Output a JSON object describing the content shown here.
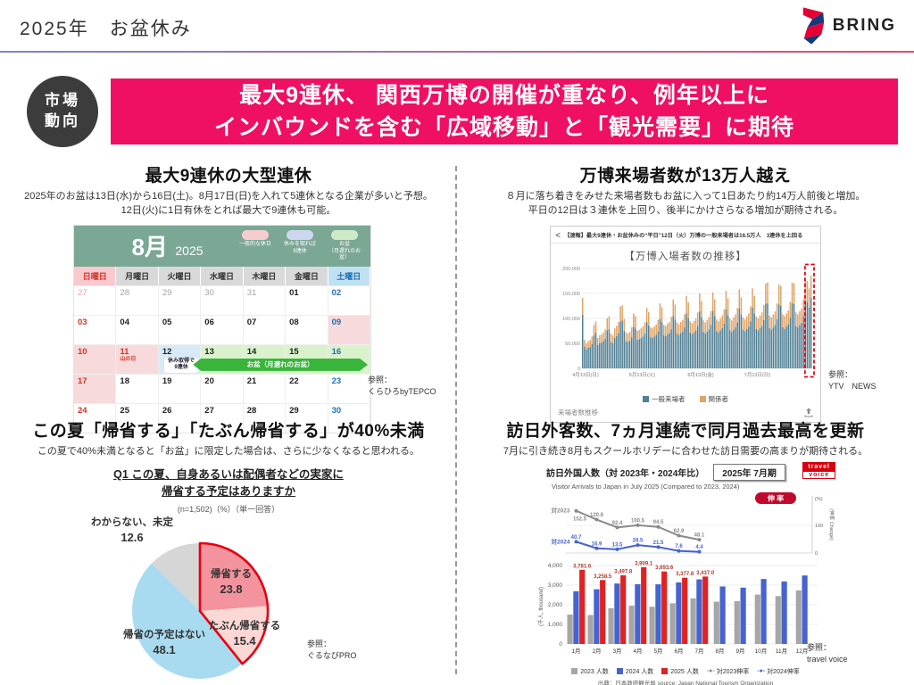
{
  "page": {
    "title": "2025年　お盆休み",
    "brand": "BRING"
  },
  "banner": {
    "tag_line1": "市場",
    "tag_line2": "動向",
    "headline_line1": "最大9連休、 関西万博の開催が重なり、例年以上に",
    "headline_line2": "インバウンドを含む「広域移動」と「観光需要」に期待",
    "accent_color": "#ef0f63"
  },
  "sections": {
    "calendar": {
      "title": "最大9連休の大型連休",
      "desc_line1": "2025年のお盆は13日(水)から16日(土)。8月17日(日)を入れて5連休となる企業が多いと予想。",
      "desc_line2": "12日(火)に1日有休をとれば最大で9連休も可能。",
      "month": "8月",
      "year": "2025",
      "header_color": "#7ba795",
      "legend": [
        {
          "line1": "一般的な休日",
          "line2": "",
          "color": "#f5cdd1"
        },
        {
          "line1": "休みを取れば",
          "line2": "9連休",
          "color": "#ccd7ee"
        },
        {
          "line1": "お盆",
          "line2": "（月遅れのお盆）",
          "color": "#cfe9c6"
        }
      ],
      "day_headers": [
        {
          "label": "日曜日",
          "cls": "sun"
        },
        {
          "label": "月曜日",
          "cls": "wd"
        },
        {
          "label": "火曜日",
          "cls": "wd"
        },
        {
          "label": "水曜日",
          "cls": "wd"
        },
        {
          "label": "木曜日",
          "cls": "wd"
        },
        {
          "label": "金曜日",
          "cls": "wd"
        },
        {
          "label": "土曜日",
          "cls": "sat"
        }
      ],
      "weeks": [
        [
          {
            "n": "27",
            "cls": "out-sun"
          },
          {
            "n": "28",
            "cls": "out"
          },
          {
            "n": "29",
            "cls": "out"
          },
          {
            "n": "30",
            "cls": "out"
          },
          {
            "n": "31",
            "cls": "out"
          },
          {
            "n": "01",
            "cls": "wd"
          },
          {
            "n": "02",
            "cls": "sat"
          }
        ],
        [
          {
            "n": "03",
            "cls": "sun"
          },
          {
            "n": "04",
            "cls": "wd"
          },
          {
            "n": "05",
            "cls": "wd"
          },
          {
            "n": "06",
            "cls": "wd"
          },
          {
            "n": "07",
            "cls": "wd"
          },
          {
            "n": "08",
            "cls": "wd"
          },
          {
            "n": "09",
            "cls": "sat bg-pink"
          }
        ],
        [
          {
            "n": "10",
            "cls": "sun bg-pink"
          },
          {
            "n": "11",
            "cls": "sun bg-pink",
            "note": "山の日"
          },
          {
            "n": "12",
            "cls": "wd bg-blue",
            "badge1": "休み取得で",
            "badge2": "9連休"
          },
          {
            "n": "13",
            "cls": "wd bg-green"
          },
          {
            "n": "14",
            "cls": "wd bg-green"
          },
          {
            "n": "15",
            "cls": "wd bg-green"
          },
          {
            "n": "16",
            "cls": "sat bg-green"
          }
        ],
        [
          {
            "n": "17",
            "cls": "sun bg-pink"
          },
          {
            "n": "18",
            "cls": "wd"
          },
          {
            "n": "19",
            "cls": "wd"
          },
          {
            "n": "20",
            "cls": "wd"
          },
          {
            "n": "21",
            "cls": "wd"
          },
          {
            "n": "22",
            "cls": "wd"
          },
          {
            "n": "23",
            "cls": "sat"
          }
        ],
        [
          {
            "n": "24",
            "cls": "sun"
          },
          {
            "n": "25",
            "cls": "wd"
          },
          {
            "n": "26",
            "cls": "wd"
          },
          {
            "n": "27",
            "cls": "wd"
          },
          {
            "n": "28",
            "cls": "wd"
          },
          {
            "n": "29",
            "cls": "wd"
          },
          {
            "n": "30",
            "cls": "sat"
          }
        ]
      ],
      "obon_arrow_label": "お盆（月遅れのお盆）",
      "ref_label": "参照：",
      "ref_value": "くらひろbyTEPCO"
    },
    "expo": {
      "title": "万博来場者数が13万人越え",
      "desc_line1": "８月に落ち着きをみせた来場者数もお盆に入って1日あたり約14万人前後と増加。",
      "desc_line2": "平日の12日は３連休を上回り、後半にかけさらなる増加が期待される。",
      "card_chevron": "＜",
      "card_header": "【速報】最大9連休・お盆休みの“平日”12日（火）万博の一般来場者は16.5万人　3連休を上回る",
      "chart_data": {
        "type": "bar",
        "stacked": true,
        "title": "【万博入場者数の推移】",
        "y_ticks": [
          "200,000",
          "150,000",
          "100,000",
          "50,000",
          "0"
        ],
        "y_max_per_day": 200000,
        "x_ticks": [
          "4月13日(日)",
          "5月13日(火)",
          "6月13日(金)",
          "7月13日(日)"
        ],
        "x_tick_day_index": [
          0,
          30,
          61,
          91
        ],
        "series": [
          {
            "name": "一般来場者",
            "color": "#517f93"
          },
          {
            "name": "関係者",
            "color": "#dfa468"
          }
        ],
        "daily_totals_thousands": [
          141,
          57,
          50,
          54,
          57,
          64,
          87,
          94,
          61,
          66,
          68,
          72,
          78,
          100,
          104,
          70,
          66,
          80,
          85,
          93,
          124,
          126,
          99,
          72,
          70,
          73,
          82,
          110,
          105,
          75,
          77,
          80,
          84,
          92,
          121,
          113,
          82,
          80,
          84,
          88,
          97,
          130,
          122,
          87,
          85,
          90,
          93,
          103,
          138,
          128,
          92,
          88,
          93,
          97,
          108,
          145,
          132,
          94,
          90,
          95,
          100,
          112,
          150,
          135,
          96,
          92,
          97,
          103,
          115,
          152,
          138,
          98,
          94,
          100,
          106,
          118,
          155,
          140,
          100,
          96,
          102,
          108,
          121,
          158,
          142,
          102,
          98,
          104,
          110,
          124,
          160,
          145,
          104,
          100,
          106,
          112,
          127,
          170,
          172,
          106,
          102,
          108,
          114,
          130,
          168,
          165,
          108,
          104,
          110,
          116,
          133,
          172,
          170,
          112,
          108,
          114,
          120,
          138,
          178,
          175,
          160,
          186
        ],
        "related_share": 0.24,
        "highlight_last_n": 3,
        "highlight_color": "#e60012"
      },
      "footer_note": "来場者数推移",
      "ref_label": "参照：",
      "ref_value": "YTV　NEWS"
    },
    "homecoming": {
      "title": "この夏「帰省する」「たぶん帰省する」が40%未満",
      "desc_line1": "この夏で40%未満となると「お盆」に限定した場合は、さらに少なくなると思われる。",
      "chart_data": {
        "type": "pie",
        "title_line1": "Q1 この夏、自身あるいは配偶者などの実家に",
        "title_line2": "帰省する予定はありますか",
        "note": "(n=1,502)（%）（単一回答）",
        "slices": [
          {
            "label": "帰省する",
            "value": 23.8,
            "color": "#f2939d",
            "outlined": true
          },
          {
            "label": "たぶん帰省する",
            "value": 15.4,
            "color": "#fbd8d4",
            "outlined": true
          },
          {
            "label": "帰省の予定はない",
            "value": 48.1,
            "color": "#a8dbf0",
            "outlined": false
          },
          {
            "label": "わからない、未定",
            "value": 12.6,
            "color": "#d6d6d6",
            "outlined": false
          }
        ],
        "outline_color": "#e60012"
      },
      "ref_label": "参照：",
      "ref_value": "ぐるなびPRO"
    },
    "visitors": {
      "title": "訪日外客数、7ヵ月連続で同月過去最高を更新",
      "desc_line1": "7月に引き続き8月もスクールホリデーに合わせた訪日需要の高まりが期待される。",
      "chart_data": {
        "type": "bar_line_combo",
        "title": "訪日外国人数（対 2023年・2024年比）",
        "period_box": "2025年 7月期",
        "subtitle": "Visitor Arrivals to Japan in July 2025 (Compared to 2023, 2024)",
        "rate_badge": "伸 率",
        "right_axis_unit": "(%)",
        "right_axis_ticks": [
          "100",
          "0"
        ],
        "right_axis_label": "(伸率 Change)",
        "months": [
          "1月",
          "2月",
          "3月",
          "4月",
          "5月",
          "6月",
          "7月",
          "8月",
          "9月",
          "10月",
          "11月",
          "12月"
        ],
        "line_series": [
          {
            "name": "対2023",
            "color": "#8a8a8a",
            "values": [
              152.5,
              120.8,
              92.4,
              100.5,
              94.5,
              62.9,
              48.1
            ]
          },
          {
            "name": "対2024",
            "color": "#4663cf",
            "values": [
              40.7,
              16.9,
              13.5,
              28.5,
              21.5,
              7.6,
              4.4
            ]
          }
        ],
        "bar_series": [
          {
            "name": "2023 人数",
            "color": "#a6a6a6",
            "values": [
              1497,
              1475,
              1818,
              1949,
              1899,
              2073,
              2321,
              2157,
              2184,
              2517,
              2441,
              2734
            ]
          },
          {
            "name": "2024 人数",
            "color": "#4663cf",
            "values": [
              2688,
              2788,
              3082,
              3043,
              3040,
              3136,
              3293,
              2933,
              2872,
              3312,
              3187,
              3490
            ]
          },
          {
            "name": "2025 人数",
            "color": "#e02222",
            "values": [
              3781.6,
              3258.5,
              3497.8,
              3909.1,
              3693.6,
              3377.8,
              3437.0
            ],
            "bar_labels": [
              "3,781.6",
              "3,258.5",
              "3,497.8",
              "3,909.1",
              "3,693.6",
              "3,377.8",
              "3,437.0"
            ]
          }
        ],
        "y_axis_label": "(千人, thousand)",
        "y_ticks": [
          "4,000",
          "3,000",
          "2,000",
          "1,000",
          "0"
        ],
        "legend_lines": [
          "対2023伸率",
          "対2024伸率"
        ],
        "source": "出典：日本政府観光局 source: Japan National Tourism Organization",
        "logo_line1": "travel",
        "logo_line2": "voice"
      },
      "ref_label": "参照：",
      "ref_value": "travel voice"
    }
  }
}
